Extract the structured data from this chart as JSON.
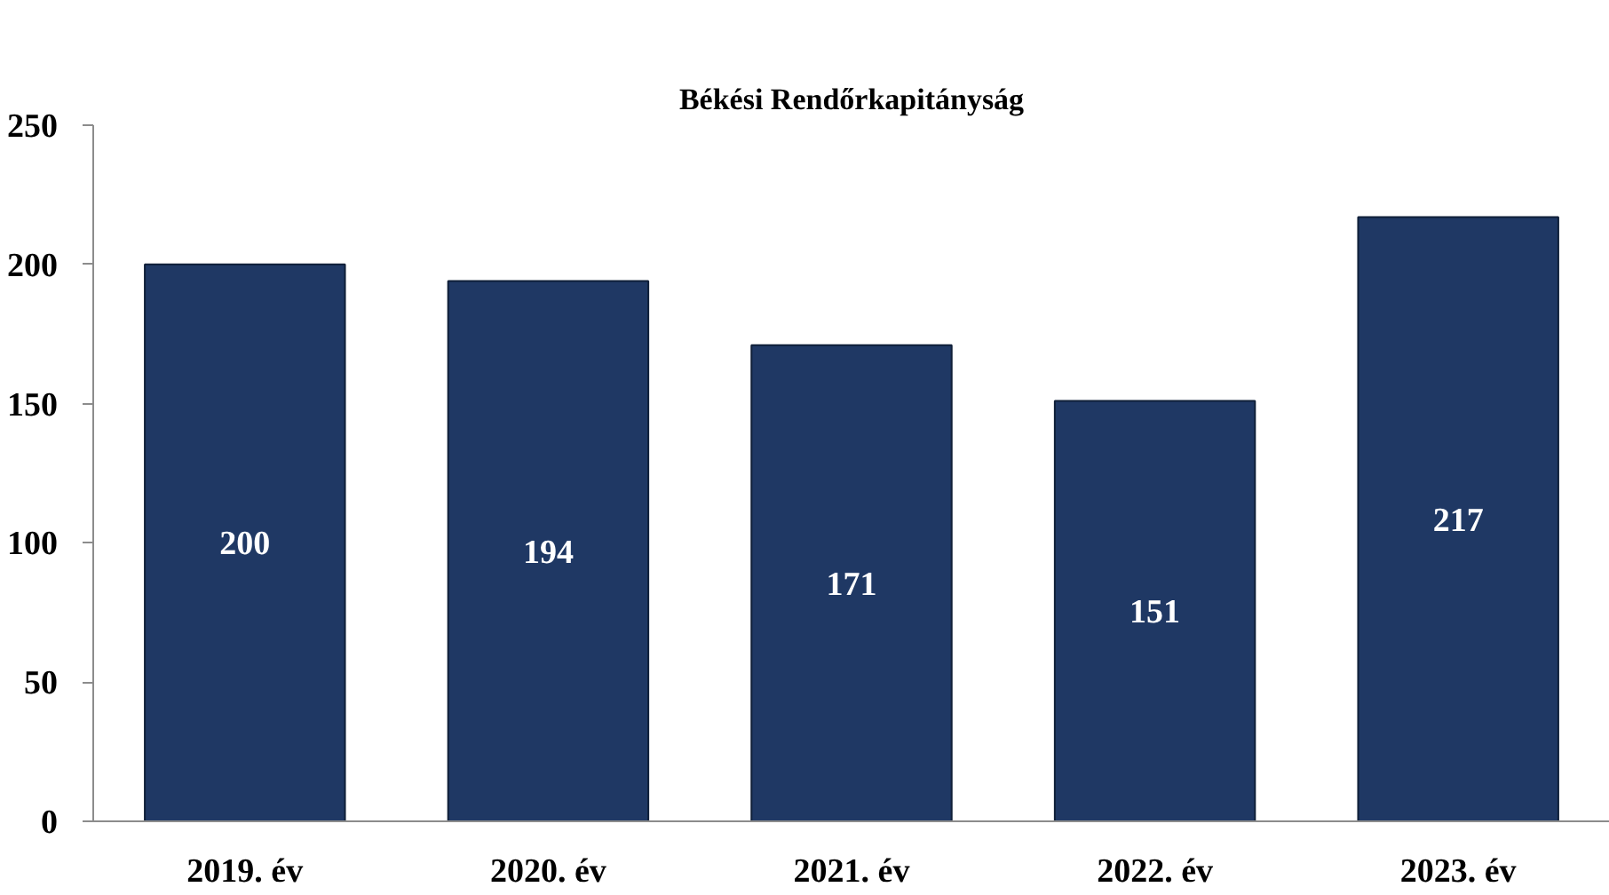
{
  "chart_data": {
    "type": "bar",
    "title": "Békési Rendőrkapitányság",
    "categories": [
      "2019. év",
      "2020. év",
      "2021. év",
      "2022. év",
      "2023. év"
    ],
    "values": [
      200,
      194,
      171,
      151,
      217
    ],
    "color": "#1f3864",
    "ylim": [
      0,
      250
    ],
    "yticks": [
      0,
      50,
      100,
      150,
      200,
      250
    ],
    "data_labels": true,
    "grid": false
  }
}
